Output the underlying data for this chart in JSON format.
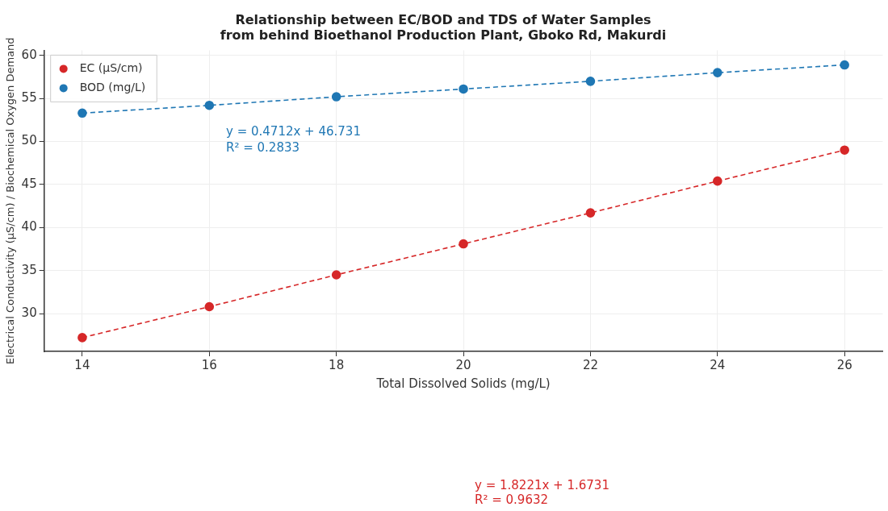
{
  "chart_data": {
    "type": "line",
    "title": "Relationship between EC/BOD and TDS of Water Samples\nfrom behind Bioethanol Production Plant, Gboko Rd, Makurdi",
    "xlabel": "Total Dissolved Solids (mg/L)",
    "ylabel": "Electrical Conductivity (µS/cm) / Biochemical Oxygen Demand",
    "x": [
      14,
      16,
      18,
      20,
      22,
      24,
      26
    ],
    "series": [
      {
        "name": "EC (µS/cm)",
        "color": "#d62728",
        "values": [
          27.2,
          30.8,
          34.5,
          38.1,
          41.7,
          45.4,
          49.0
        ]
      },
      {
        "name": "BOD (mg/L)",
        "color": "#1f77b4",
        "values": [
          53.3,
          54.2,
          55.2,
          56.1,
          57.0,
          58.0,
          58.9
        ]
      }
    ],
    "xlim": [
      13.4,
      26.6
    ],
    "xticks": [
      14,
      16,
      18,
      20,
      22,
      24,
      26
    ],
    "ylim": [
      25.6,
      60.6
    ],
    "yticks": [
      30,
      35,
      40,
      45,
      50,
      55,
      60
    ],
    "grid": true,
    "legend": "top left",
    "marker": "circle",
    "line_style": "dashed",
    "annotations": [
      "y = 0.4712x + 46.731",
      "R² = 0.2833",
      "y = 1.8221x + 1.6731",
      "R² = 0.9632"
    ]
  }
}
